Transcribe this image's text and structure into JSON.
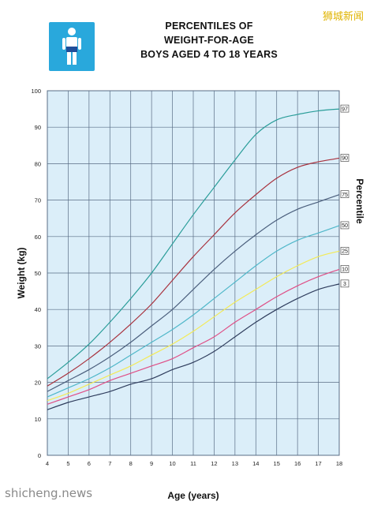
{
  "title": {
    "line1": "PERCENTILES OF",
    "line2": "WEIGHT-FOR-AGE",
    "line3": "BOYS AGED 4 TO 18 YEARS"
  },
  "watermark_top": "狮城新闻",
  "watermark_bottom": "shicheng.news",
  "logo_icon": "boy-figure-icon",
  "colors": {
    "logo": "#29a8dc",
    "plot_bg": "#dbeef9",
    "grid": "#5a6d86",
    "p97": "#2a9d99",
    "p90": "#a8323e",
    "p75": "#4b5f7d",
    "p50": "#4fb7c9",
    "p25": "#f3ea56",
    "p10": "#df4f86",
    "p3": "#2f3d5d"
  },
  "chart_data": {
    "type": "line",
    "title": "PERCENTILES OF WEIGHT-FOR-AGE BOYS AGED 4 TO 18 YEARS",
    "xlabel": "Age (years)",
    "ylabel": "Weight (kg)",
    "right_label": "Percentile",
    "xlim": [
      4,
      18
    ],
    "ylim": [
      0,
      100
    ],
    "x_ticks": [
      "4",
      "5",
      "6",
      "7",
      "8",
      "9",
      "10",
      "11",
      "12",
      "13",
      "14",
      "15",
      "16",
      "17",
      "18"
    ],
    "y_ticks": [
      "0",
      "10",
      "20",
      "30",
      "40",
      "50",
      "60",
      "70",
      "80",
      "90",
      "100"
    ],
    "grid": true,
    "x": [
      4,
      5,
      6,
      7,
      8,
      9,
      10,
      11,
      12,
      13,
      14,
      15,
      16,
      17,
      18
    ],
    "series": [
      {
        "name": "97",
        "color_key": "p97",
        "values": [
          21,
          25.5,
          30.5,
          36.5,
          43,
          50,
          58,
          66,
          73.5,
          81,
          88,
          92,
          93.5,
          94.5,
          95
        ]
      },
      {
        "name": "90",
        "color_key": "p90",
        "values": [
          19,
          22.5,
          26.5,
          31,
          36,
          41.5,
          48,
          54.5,
          60.5,
          66.5,
          71.5,
          76,
          79,
          80.5,
          81.5
        ]
      },
      {
        "name": "75",
        "color_key": "p75",
        "values": [
          17.5,
          20.5,
          23.5,
          27,
          31,
          35.5,
          40,
          45.5,
          51,
          56,
          60.5,
          64.5,
          67.5,
          69.5,
          71.5
        ]
      },
      {
        "name": "50",
        "color_key": "p50",
        "values": [
          16,
          18.5,
          21,
          24,
          27.5,
          31,
          34.5,
          38.5,
          43,
          47.5,
          52,
          56,
          59,
          61,
          63
        ]
      },
      {
        "name": "25",
        "color_key": "p25",
        "values": [
          15,
          17,
          19.5,
          22,
          24.5,
          27.5,
          30.5,
          34,
          38,
          42,
          45.5,
          49,
          52,
          54.5,
          56
        ]
      },
      {
        "name": "10",
        "color_key": "p10",
        "values": [
          14,
          16,
          18,
          20.5,
          22.5,
          24.5,
          26.5,
          29.5,
          32.5,
          36.5,
          40,
          43.5,
          46.5,
          49,
          51
        ]
      },
      {
        "name": "3",
        "color_key": "p3",
        "values": [
          12.5,
          14.5,
          16,
          17.5,
          19.5,
          21,
          23.5,
          25.5,
          28.5,
          32.5,
          36.5,
          40,
          43,
          45.5,
          47
        ]
      }
    ]
  }
}
